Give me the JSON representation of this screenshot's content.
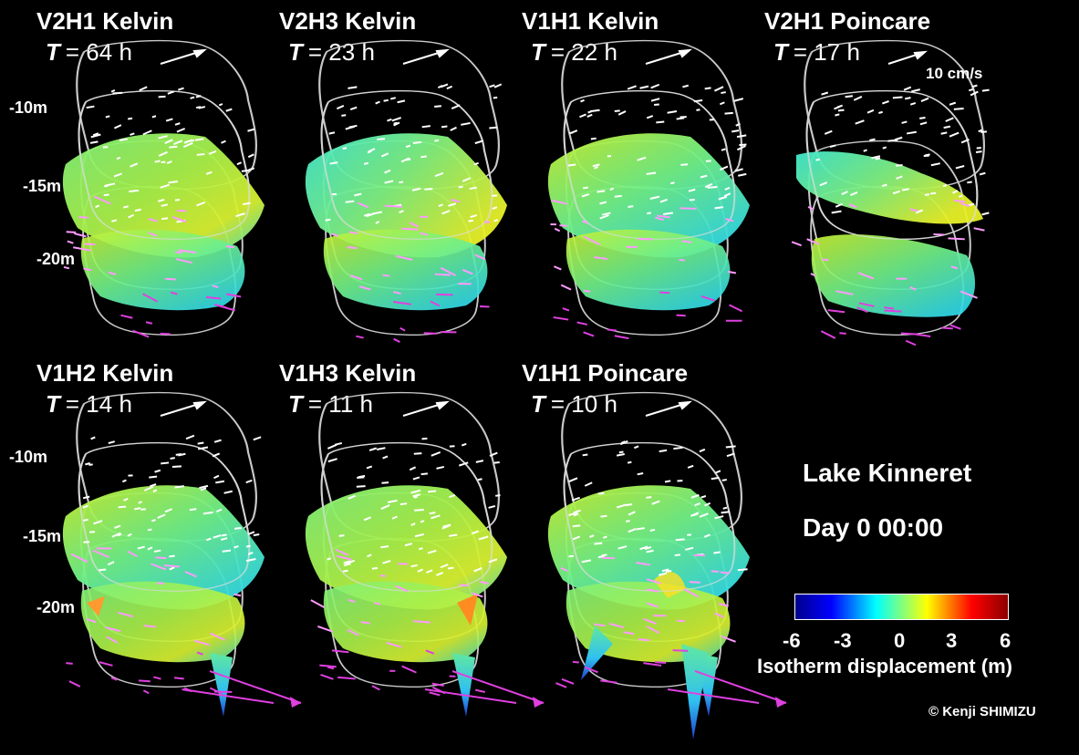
{
  "panels": [
    {
      "title": "V2H1 Kelvin",
      "t_label": "T",
      "period": "= 64 h"
    },
    {
      "title": "V2H3 Kelvin",
      "t_label": "T",
      "period": "= 23 h"
    },
    {
      "title": "V1H1 Kelvin",
      "t_label": "T",
      "period": "= 22 h"
    },
    {
      "title": "V2H1 Poincare",
      "t_label": "T",
      "period": "= 17 h"
    },
    {
      "title": "V1H2 Kelvin",
      "t_label": "T",
      "period": "= 14 h"
    },
    {
      "title": "V1H3 Kelvin",
      "t_label": "T",
      "period": "= 11 h"
    },
    {
      "title": "V1H1 Poincare",
      "t_label": "T",
      "period": "= 10 h"
    }
  ],
  "depth_labels": [
    "-10m",
    "-15m",
    "-20m"
  ],
  "velocity_scale": "10 cm/s",
  "lake_name": "Lake Kinneret",
  "time_label": "Day 0 00:00",
  "colorbar": {
    "ticks": [
      "-6",
      "-3",
      "0",
      "3",
      "6"
    ],
    "title": "Isotherm displacement (m)",
    "range": [
      -6,
      6
    ],
    "colors": [
      "#00008c",
      "#0000ff",
      "#00ffff",
      "#7fff7f",
      "#ffff00",
      "#ff0000",
      "#8c0000"
    ]
  },
  "credit": "© Kenji SHIMIZU"
}
